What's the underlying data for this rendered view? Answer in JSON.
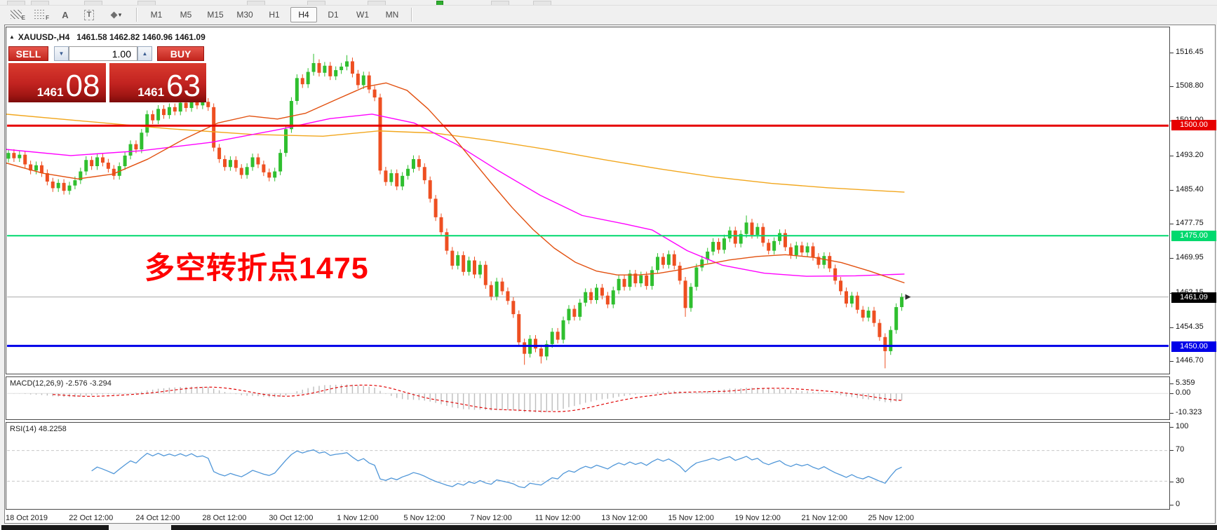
{
  "toolbar": {
    "tools": [
      {
        "name": "equidistant-channel",
        "glyph": "E"
      },
      {
        "name": "fibonacci-retracement",
        "glyph": "F"
      },
      {
        "name": "text-label",
        "glyph": "A"
      },
      {
        "name": "text-box",
        "glyph": "T"
      },
      {
        "name": "arrows-dropdown",
        "glyph": "▾"
      }
    ],
    "timeframes": [
      "M1",
      "M5",
      "M15",
      "M30",
      "H1",
      "H4",
      "D1",
      "W1",
      "MN"
    ],
    "active_timeframe": "H4"
  },
  "chart": {
    "title": {
      "collapse_icon": "▲",
      "symbol_period": "XAUUSD-,H4",
      "ohlc": "1461.58 1462.82 1460.96 1461.09"
    },
    "trade_panel": {
      "sell_label": "SELL",
      "buy_label": "BUY",
      "volume": "1.00",
      "spin_down": "▼",
      "spin_up": "▲",
      "sell_price": {
        "base": "1461",
        "big": "08"
      },
      "buy_price": {
        "base": "1461",
        "big": "63"
      }
    },
    "annotation": {
      "text": "多空转折点1475",
      "color": "#ff0000"
    },
    "colors": {
      "bull": "#2fbf2f",
      "bear": "#ee4f21",
      "ma_slow": "#f2a71e",
      "ma_mid": "#ff00ff",
      "ma_fast": "#e2500f",
      "bid_line": "#ababab",
      "bid_label_bg": "#000000",
      "macd_hist": "#bdbdbd",
      "macd_signal": "#e00000",
      "rsi_line": "#4f96d8",
      "level_dashed": "#c8c8c8"
    },
    "price_axis": {
      "ticks": [
        "1516.45",
        "1508.80",
        "1501.00",
        "1493.20",
        "1485.40",
        "1477.75",
        "1469.95",
        "1462.15",
        "1454.35",
        "1446.70"
      ]
    },
    "hlines": [
      {
        "label": "1500.00",
        "price": 1500.0,
        "color": "#e60000",
        "width": 3
      },
      {
        "label": "1475.00",
        "price": 1475.0,
        "color": "#00d96e",
        "width": 2
      },
      {
        "label": "1450.00",
        "price": 1450.0,
        "color": "#0000e8",
        "width": 3
      }
    ],
    "bid": {
      "label": "1461.09",
      "price": 1461.09
    }
  },
  "chart_data": {
    "type": "candlestick",
    "symbol": "XAUUSD-",
    "period": "H4",
    "price_range": [
      1446.7,
      1516.45
    ],
    "first_open": 1492.5,
    "default_wick": 0.85,
    "closes": [
      1493.8,
      1492.6,
      1493.4,
      1491.2,
      1489.8,
      1491.0,
      1489.2,
      1487.3,
      1485.8,
      1487.0,
      1485.2,
      1486.4,
      1487.6,
      1489.6,
      1492.2,
      1490.8,
      1492.8,
      1491.6,
      1490.2,
      1488.6,
      1490.8,
      1493.2,
      1495.8,
      1494.6,
      1498.4,
      1502.6,
      1501.2,
      1503.8,
      1502.4,
      1504.2,
      1503.2,
      1505.2,
      1504.0,
      1506.2,
      1504.6,
      1505.4,
      1504.2,
      1495.0,
      1492.4,
      1490.6,
      1492.2,
      1490.4,
      1488.8,
      1490.6,
      1492.8,
      1491.2,
      1489.4,
      1488.2,
      1489.6,
      1493.8,
      1499.2,
      1505.6,
      1510.8,
      1509.4,
      1512.2,
      1514.2,
      1512.0,
      1513.6,
      1511.2,
      1512.6,
      1513.4,
      1514.6,
      1511.8,
      1509.2,
      1511.4,
      1508.2,
      1506.4,
      1489.8,
      1487.2,
      1489.2,
      1486.2,
      1488.6,
      1490.2,
      1492.4,
      1490.6,
      1487.6,
      1483.4,
      1479.2,
      1475.8,
      1471.6,
      1468.2,
      1470.6,
      1466.8,
      1469.4,
      1466.2,
      1468.4,
      1463.8,
      1461.2,
      1464.6,
      1462.4,
      1460.2,
      1457.2,
      1450.8,
      1448.2,
      1451.6,
      1449.4,
      1447.6,
      1450.4,
      1453.2,
      1451.4,
      1455.8,
      1458.4,
      1456.6,
      1459.8,
      1462.2,
      1460.4,
      1463.2,
      1461.4,
      1459.4,
      1462.6,
      1465.2,
      1463.4,
      1466.4,
      1464.2,
      1466.0,
      1463.6,
      1467.2,
      1470.2,
      1468.4,
      1470.8,
      1468.2,
      1464.8,
      1458.6,
      1463.4,
      1467.8,
      1469.6,
      1471.4,
      1473.6,
      1471.8,
      1474.4,
      1476.2,
      1473.2,
      1475.4,
      1478.0,
      1475.2,
      1477.0,
      1473.4,
      1471.6,
      1473.8,
      1475.6,
      1472.4,
      1470.6,
      1472.8,
      1471.2,
      1472.6,
      1470.2,
      1468.4,
      1470.4,
      1467.6,
      1464.8,
      1462.4,
      1459.6,
      1461.4,
      1458.2,
      1456.4,
      1458.0,
      1455.2,
      1452.0,
      1448.8,
      1453.6,
      1458.8,
      1461.1
    ],
    "wick_overrides": {
      "55": {
        "high": 1516.3
      },
      "61": {
        "high": 1516.0
      },
      "93": {
        "low": 1445.7
      },
      "96": {
        "low": 1446.0
      },
      "122": {
        "low": 1456.6
      },
      "133": {
        "high": 1479.6
      },
      "158": {
        "low": 1444.9
      }
    },
    "ma_lines": [
      {
        "name": "ma-slow",
        "color_key": "ma_slow",
        "points": [
          [
            8,
            1502.6
          ],
          [
            120,
            1501.0
          ],
          [
            240,
            1499.3
          ],
          [
            360,
            1498.0
          ],
          [
            460,
            1497.6
          ],
          [
            540,
            1498.8
          ],
          [
            620,
            1498.3
          ],
          [
            700,
            1496.6
          ],
          [
            780,
            1494.6
          ],
          [
            860,
            1492.3
          ],
          [
            940,
            1490.2
          ],
          [
            1020,
            1488.3
          ],
          [
            1100,
            1486.9
          ],
          [
            1180,
            1485.9
          ],
          [
            1290,
            1484.9
          ]
        ]
      },
      {
        "name": "ma-mid",
        "color_key": "ma_mid",
        "points": [
          [
            8,
            1494.6
          ],
          [
            100,
            1493.2
          ],
          [
            200,
            1494.3
          ],
          [
            300,
            1496.2
          ],
          [
            400,
            1499.2
          ],
          [
            470,
            1501.6
          ],
          [
            530,
            1502.6
          ],
          [
            590,
            1500.6
          ],
          [
            650,
            1495.8
          ],
          [
            710,
            1489.8
          ],
          [
            770,
            1484.2
          ],
          [
            830,
            1479.6
          ],
          [
            890,
            1477.7
          ],
          [
            930,
            1476.3
          ],
          [
            980,
            1471.6
          ],
          [
            1030,
            1468.3
          ],
          [
            1090,
            1466.5
          ],
          [
            1150,
            1465.8
          ],
          [
            1220,
            1465.9
          ],
          [
            1290,
            1466.3
          ]
        ]
      },
      {
        "name": "ma-fast",
        "color_key": "ma_fast",
        "points": [
          [
            8,
            1491.5
          ],
          [
            60,
            1489.2
          ],
          [
            110,
            1487.9
          ],
          [
            160,
            1489.0
          ],
          [
            210,
            1492.4
          ],
          [
            260,
            1496.8
          ],
          [
            310,
            1500.6
          ],
          [
            355,
            1502.2
          ],
          [
            395,
            1501.5
          ],
          [
            435,
            1502.8
          ],
          [
            480,
            1506.0
          ],
          [
            520,
            1508.8
          ],
          [
            550,
            1509.7
          ],
          [
            580,
            1508.0
          ],
          [
            610,
            1503.8
          ],
          [
            640,
            1498.6
          ],
          [
            670,
            1492.8
          ],
          [
            700,
            1487.0
          ],
          [
            730,
            1481.4
          ],
          [
            760,
            1476.4
          ],
          [
            790,
            1472.2
          ],
          [
            820,
            1469.0
          ],
          [
            850,
            1467.0
          ],
          [
            880,
            1466.1
          ],
          [
            910,
            1466.1
          ],
          [
            940,
            1466.5
          ],
          [
            970,
            1467.3
          ],
          [
            1000,
            1468.3
          ],
          [
            1040,
            1469.5
          ],
          [
            1080,
            1470.3
          ],
          [
            1120,
            1470.7
          ],
          [
            1160,
            1470.1
          ],
          [
            1200,
            1468.9
          ],
          [
            1240,
            1467.0
          ],
          [
            1290,
            1464.3
          ]
        ]
      }
    ],
    "time_axis": {
      "labels": [
        "18 Oct 2019",
        "22 Oct 12:00",
        "24 Oct 12:00",
        "28 Oct 12:00",
        "30 Oct 12:00",
        "1 Nov 12:00",
        "5 Nov 12:00",
        "7 Nov 12:00",
        "11 Nov 12:00",
        "13 Nov 12:00",
        "15 Nov 12:00",
        "19 Nov 12:00",
        "21 Nov 12:00",
        "25 Nov 12:00"
      ],
      "bar_indices": [
        0,
        15,
        27,
        39,
        51,
        63,
        75,
        87,
        99,
        111,
        123,
        135,
        147,
        159
      ]
    }
  },
  "macd": {
    "label": "MACD(12,26,9) -2.576 -3.294",
    "fast": 12,
    "slow": 26,
    "signal": 9,
    "axis_ticks": [
      "5.359",
      "0.00",
      "-10.323"
    ],
    "axis_values": [
      5.359,
      0,
      -10.323
    ]
  },
  "rsi": {
    "label": "RSI(14) 48.2258",
    "period": 14,
    "axis_ticks": [
      "100",
      "70",
      "30",
      "0"
    ],
    "axis_values": [
      100,
      70,
      30,
      0
    ],
    "levels": [
      70,
      30
    ]
  }
}
